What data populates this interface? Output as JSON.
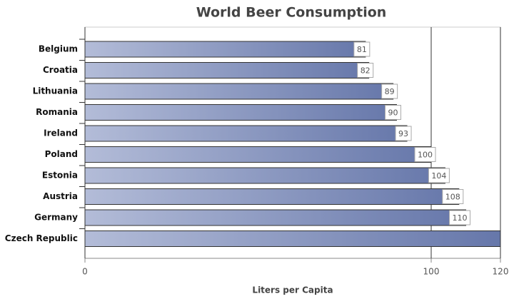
{
  "chart_data": {
    "type": "bar",
    "orientation": "horizontal",
    "title": "World Beer Consumption",
    "x_label": "Liters per Capita",
    "categories": [
      "Belgium",
      "Croatia",
      "Lithuania",
      "Romania",
      "Ireland",
      "Poland",
      "Estonia",
      "Austria",
      "Germany",
      "Czech Republic"
    ],
    "values": [
      81,
      82,
      89,
      90,
      93,
      100,
      104,
      108,
      110,
      120
    ],
    "value_labels": [
      "81",
      "82",
      "89",
      "90",
      "93",
      "100",
      "104",
      "108",
      "110",
      null
    ],
    "color": "#6677aa",
    "xlim": [
      0,
      120
    ],
    "xticks": [
      0,
      100,
      120
    ],
    "grid": true
  }
}
